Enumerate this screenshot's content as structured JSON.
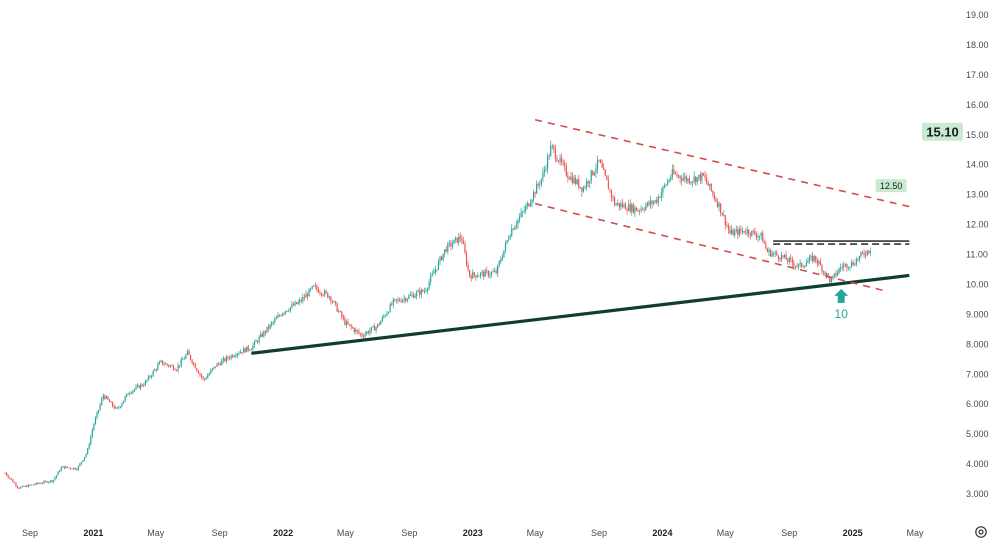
{
  "chart_data": {
    "type": "candlestick",
    "title": "",
    "xlabel": "",
    "ylabel": "",
    "ylim": [
      2.6,
      19.3
    ],
    "y_ticks": [
      "19.00",
      "18.00",
      "17.00",
      "16.00",
      "15.00",
      "14.00",
      "13.00",
      "12.00",
      "11.00",
      "10.00",
      "9.000",
      "8.000",
      "7.000",
      "6.000",
      "5.000",
      "4.000",
      "3.000"
    ],
    "x_ticks": [
      {
        "label": "Sep",
        "bold": false
      },
      {
        "label": "2021",
        "bold": true
      },
      {
        "label": "May",
        "bold": false
      },
      {
        "label": "Sep",
        "bold": false
      },
      {
        "label": "2022",
        "bold": true
      },
      {
        "label": "May",
        "bold": false
      },
      {
        "label": "Sep",
        "bold": false
      },
      {
        "label": "2023",
        "bold": true
      },
      {
        "label": "May",
        "bold": false
      },
      {
        "label": "Sep",
        "bold": false
      },
      {
        "label": "2024",
        "bold": true
      },
      {
        "label": "May",
        "bold": false
      },
      {
        "label": "Sep",
        "bold": false
      },
      {
        "label": "2025",
        "bold": true
      },
      {
        "label": "May",
        "bold": false
      }
    ],
    "price_path": [
      [
        "2020-07-15",
        3.7
      ],
      [
        "2020-08-10",
        3.2
      ],
      [
        "2020-09-15",
        3.35
      ],
      [
        "2020-10-15",
        3.45
      ],
      [
        "2020-11-01",
        3.9
      ],
      [
        "2020-12-01",
        3.85
      ],
      [
        "2020-12-20",
        4.4
      ],
      [
        "2021-01-01",
        5.3
      ],
      [
        "2021-01-20",
        6.3
      ],
      [
        "2021-02-15",
        5.8
      ],
      [
        "2021-03-10",
        6.4
      ],
      [
        "2021-04-10",
        6.7
      ],
      [
        "2021-05-10",
        7.4
      ],
      [
        "2021-06-10",
        7.2
      ],
      [
        "2021-07-01",
        7.7
      ],
      [
        "2021-08-01",
        6.8
      ],
      [
        "2021-08-25",
        7.3
      ],
      [
        "2021-10-01",
        7.7
      ],
      [
        "2021-11-01",
        7.9
      ],
      [
        "2021-12-01",
        8.5
      ],
      [
        "2022-01-01",
        9.1
      ],
      [
        "2022-02-01",
        9.4
      ],
      [
        "2022-03-01",
        9.9
      ],
      [
        "2022-04-01",
        9.6
      ],
      [
        "2022-05-01",
        8.7
      ],
      [
        "2022-06-01",
        8.3
      ],
      [
        "2022-07-01",
        8.6
      ],
      [
        "2022-08-01",
        9.4
      ],
      [
        "2022-09-01",
        9.6
      ],
      [
        "2022-10-01",
        9.8
      ],
      [
        "2022-11-10",
        11.2
      ],
      [
        "2022-12-10",
        11.6
      ],
      [
        "2022-12-25",
        10.3
      ],
      [
        "2023-02-15",
        10.4
      ],
      [
        "2023-03-15",
        11.8
      ],
      [
        "2023-04-15",
        12.6
      ],
      [
        "2023-05-15",
        13.6
      ],
      [
        "2023-06-01",
        14.6
      ],
      [
        "2023-07-01",
        13.7
      ],
      [
        "2023-08-01",
        13.2
      ],
      [
        "2023-09-01",
        14.1
      ],
      [
        "2023-10-01",
        12.7
      ],
      [
        "2023-11-15",
        12.5
      ],
      [
        "2023-12-20",
        12.8
      ],
      [
        "2024-01-20",
        13.7
      ],
      [
        "2024-02-20",
        13.5
      ],
      [
        "2024-03-20",
        13.6
      ],
      [
        "2024-04-20",
        12.6
      ],
      [
        "2024-05-10",
        11.7
      ],
      [
        "2024-06-10",
        11.8
      ],
      [
        "2024-07-10",
        11.6
      ],
      [
        "2024-07-20",
        11.1
      ],
      [
        "2024-08-20",
        10.9
      ],
      [
        "2024-09-20",
        10.6
      ],
      [
        "2024-10-20",
        10.9
      ],
      [
        "2024-11-20",
        10.1
      ],
      [
        "2024-12-10",
        10.6
      ],
      [
        "2025-01-01",
        10.7
      ],
      [
        "2025-01-20",
        11.0
      ],
      [
        "2025-02-05",
        11.2
      ]
    ],
    "trendlines": [
      {
        "kind": "support",
        "style": "solid",
        "color": "#0f3d2e",
        "from": [
          "2021-11-01",
          7.7
        ],
        "to": [
          "2025-04-20",
          10.3
        ]
      },
      {
        "kind": "channel-upper",
        "style": "dashed",
        "color": "#d84a4a",
        "from": [
          "2023-05-01",
          15.5
        ],
        "to": [
          "2025-04-20",
          12.6
        ]
      },
      {
        "kind": "channel-lower",
        "style": "dashed",
        "color": "#d84a4a",
        "from": [
          "2023-05-01",
          12.7
        ],
        "to": [
          "2025-03-01",
          9.8
        ]
      },
      {
        "kind": "resistance",
        "style": "solid",
        "color": "#111111",
        "from": [
          "2024-08-01",
          11.45
        ],
        "to": [
          "2025-04-20",
          11.45
        ]
      },
      {
        "kind": "resistance-dashed",
        "style": "dashed",
        "color": "#111111",
        "from": [
          "2024-08-01",
          11.35
        ],
        "to": [
          "2025-04-20",
          11.35
        ]
      }
    ],
    "annotations": [
      {
        "name": "target-12-50",
        "text": "12.50",
        "x": "2025-02-20",
        "y": 13.25
      },
      {
        "name": "target-15-10",
        "text": "15.10",
        "price": 15.1
      },
      {
        "name": "bottom-arrow",
        "text": "10",
        "x": "2024-12-10",
        "y": 9.85
      }
    ],
    "colors": {
      "up": "#26a69a",
      "down": "#ef5350",
      "support": "#0f3d2e",
      "channel": "#d84a4a",
      "badge_bg": "#c8ead0",
      "arrow": "#26a69a",
      "axis_text": "#4a4a4a"
    }
  },
  "controls": {
    "settings_icon": "settings-gear-icon"
  }
}
